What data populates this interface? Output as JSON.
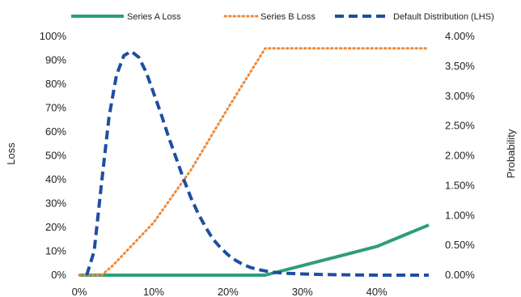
{
  "chart_data": {
    "type": "line",
    "title": "",
    "xlabel": "",
    "ylabel_left": "Loss",
    "ylabel_right": "Probability",
    "xlim": [
      0,
      47
    ],
    "ylim_left": [
      0,
      100
    ],
    "ylim_right": [
      0,
      4
    ],
    "x_ticks": [
      0,
      10,
      20,
      30,
      40
    ],
    "x_tick_labels": [
      "0%",
      "10%",
      "20%",
      "30%",
      "40%"
    ],
    "y_left_ticks": [
      0,
      10,
      20,
      30,
      40,
      50,
      60,
      70,
      80,
      90,
      100
    ],
    "y_left_tick_labels": [
      "0%",
      "10%",
      "20%",
      "30%",
      "40%",
      "50%",
      "60%",
      "70%",
      "80%",
      "90%",
      "100%"
    ],
    "y_right_ticks": [
      0,
      0.5,
      1,
      1.5,
      2,
      2.5,
      3,
      3.5,
      4
    ],
    "y_right_tick_labels": [
      "0.00%",
      "0.50%",
      "1.00%",
      "1.50%",
      "2.00%",
      "2.50%",
      "3.00%",
      "3.50%",
      "4.00%"
    ],
    "grid": false,
    "legend_position": "top",
    "series": [
      {
        "name": "Series A Loss",
        "axis": "left",
        "style": "solid",
        "color": "#2e9e7a",
        "x": [
          0,
          25,
          30,
          35,
          40,
          47
        ],
        "y": [
          0,
          0,
          4,
          8,
          12,
          21
        ]
      },
      {
        "name": "Series B Loss",
        "axis": "left",
        "style": "dotted",
        "color": "#ef8a3a",
        "x": [
          0,
          3,
          4.5,
          10,
          15,
          20,
          24,
          25,
          47
        ],
        "y": [
          0,
          0,
          4,
          22,
          44,
          70,
          90,
          95,
          95
        ]
      },
      {
        "name": "Default Distribution (LHS)",
        "axis": "right",
        "style": "dashed",
        "color": "#1f4ea3",
        "x": [
          1,
          2,
          3,
          4,
          5,
          6,
          7,
          8,
          9,
          10,
          11,
          12,
          13,
          14,
          15,
          16,
          17,
          18,
          19,
          20,
          21,
          22,
          23,
          24,
          25,
          26,
          28,
          30,
          33,
          36,
          40,
          44,
          47
        ],
        "y": [
          0.0,
          0.4,
          1.55,
          2.65,
          3.35,
          3.68,
          3.75,
          3.65,
          3.4,
          3.05,
          2.7,
          2.32,
          1.97,
          1.62,
          1.3,
          1.03,
          0.8,
          0.6,
          0.46,
          0.34,
          0.25,
          0.18,
          0.13,
          0.095,
          0.07,
          0.05,
          0.03,
          0.02,
          0.01,
          0.005,
          0.0,
          0.0,
          0.0
        ]
      }
    ]
  }
}
